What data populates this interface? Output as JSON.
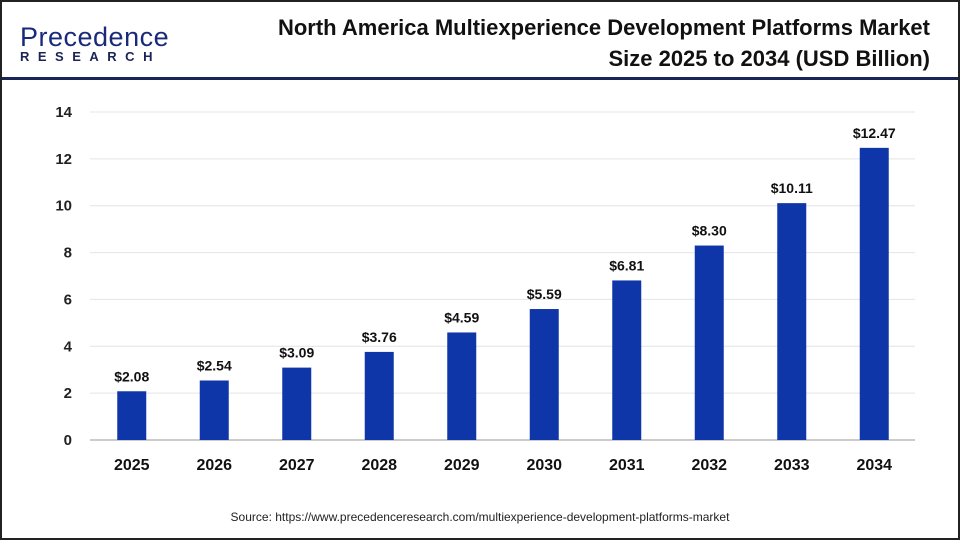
{
  "logo": {
    "line1": "Precedence",
    "line2": "RESEARCH"
  },
  "title": "North America Multiexperience Development Platforms Market Size 2025 to 2034 (USD Billion)",
  "source": "Source: https://www.precedenceresearch.com/multiexperience-development-platforms-market",
  "chart_data": {
    "type": "bar",
    "title": "North America Multiexperience Development Platforms Market Size 2025 to 2034 (USD Billion)",
    "categories": [
      "2025",
      "2026",
      "2027",
      "2028",
      "2029",
      "2030",
      "2031",
      "2032",
      "2033",
      "2034"
    ],
    "values": [
      2.08,
      2.54,
      3.09,
      3.76,
      4.59,
      5.59,
      6.81,
      8.3,
      10.11,
      12.47
    ],
    "data_labels": [
      "$2.08",
      "$2.54",
      "$3.09",
      "$3.76",
      "$4.59",
      "$5.59",
      "$6.81",
      "$8.30",
      "$10.11",
      "$12.47"
    ],
    "yticks": [
      0,
      2,
      4,
      6,
      8,
      10,
      12,
      14
    ],
    "ylim": [
      0,
      14
    ],
    "grid": true,
    "bar_color": "#0f36a8",
    "xlabel": "",
    "ylabel": ""
  }
}
